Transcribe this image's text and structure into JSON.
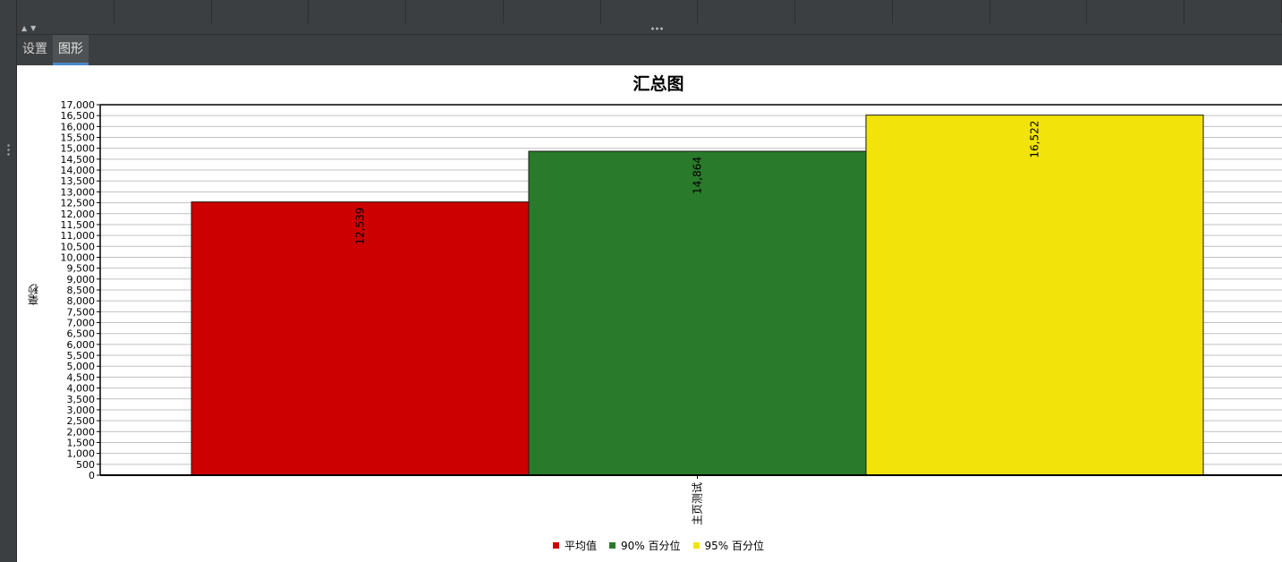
{
  "tabs": [
    {
      "label": "设置",
      "active": false
    },
    {
      "label": "图形",
      "active": true
    }
  ],
  "chart_data": {
    "type": "bar",
    "title": "汇总图",
    "ylabel": "毫秒",
    "xlabel": "",
    "categories": [
      "主页测试"
    ],
    "series": [
      {
        "name": "平均值",
        "color": "#cc0000",
        "values": [
          12539
        ],
        "label": "12,539"
      },
      {
        "name": "90% 百分位",
        "color": "#2a7a2c",
        "values": [
          14864
        ],
        "label": "14,864"
      },
      {
        "name": "95% 百分位",
        "color": "#f2e30a",
        "values": [
          16522
        ],
        "label": "16,522"
      }
    ],
    "ylim": [
      0,
      17000
    ],
    "ytick_step": 500,
    "grid": true,
    "legend_position": "bottom"
  }
}
